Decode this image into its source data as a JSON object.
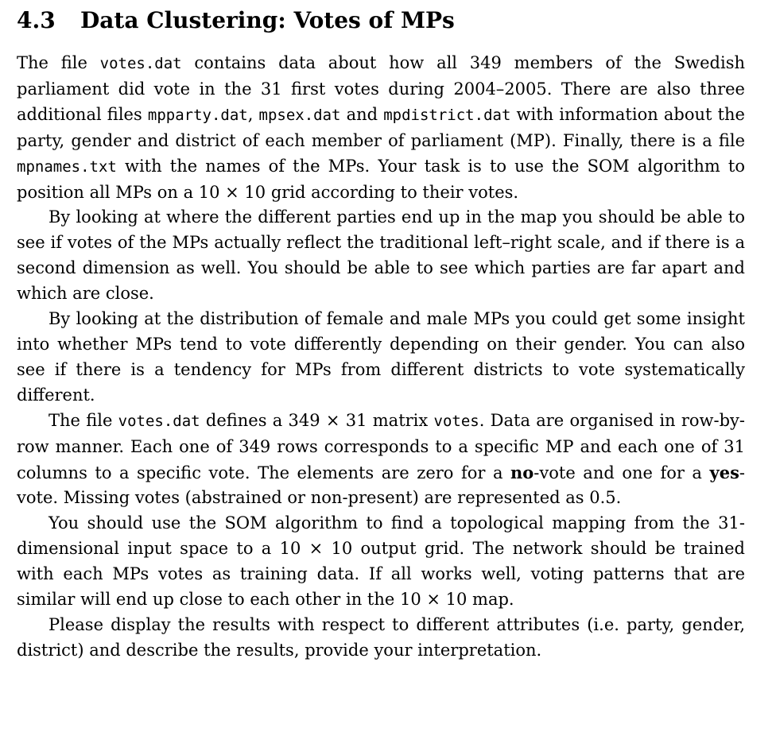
{
  "section": {
    "number": "4.3",
    "title": "Data Clustering: Votes of MPs"
  },
  "paragraphs": [
    [
      {
        "t": "The file "
      },
      {
        "t": "votes.dat",
        "s": "tt"
      },
      {
        "t": " contains data about how all 349 members of the Swedish parliament did vote in the 31 first votes during 2004–2005. There are also three additional files "
      },
      {
        "t": "mpparty.dat",
        "s": "tt"
      },
      {
        "t": ", "
      },
      {
        "t": "mpsex.dat",
        "s": "tt"
      },
      {
        "t": " and "
      },
      {
        "t": "mpdistrict.dat",
        "s": "tt"
      },
      {
        "t": " with information about the party, gender and district of each member of parliament (MP). Finally, there is a file "
      },
      {
        "t": "mpnames.txt",
        "s": "tt"
      },
      {
        "t": " with the names of the MPs. Your task is to use the SOM algorithm to position all MPs on a 10 × 10 grid according to their votes."
      }
    ],
    [
      {
        "t": "By looking at where the different parties end up in the map you should be able to see if votes of the MPs actually reflect the traditional left–right scale, and if there is a second dimension as well. You should be able to see which parties are far apart and which are close."
      }
    ],
    [
      {
        "t": "By looking at the distribution of female and male MPs you could get some insight into whether MPs tend to vote differently depending on their gender. You can also see if there is a tendency for MPs from different districts to vote systematically different."
      }
    ],
    [
      {
        "t": "The file "
      },
      {
        "t": "votes.dat",
        "s": "tt"
      },
      {
        "t": " defines a 349 × 31 matrix "
      },
      {
        "t": "votes",
        "s": "tt"
      },
      {
        "t": ". Data are organised in row-by-row manner. Each one of 349 rows corresponds to a specific MP and each one of 31 columns to a specific vote. The elements are zero for a "
      },
      {
        "t": "no",
        "s": "bf"
      },
      {
        "t": "-vote and one for a "
      },
      {
        "t": "yes",
        "s": "bf"
      },
      {
        "t": "-vote. Missing votes (abstrained or non-present) are represented as 0.5."
      }
    ],
    [
      {
        "t": "You should use the SOM algorithm to find a topological mapping from the 31-dimensional input space to a 10 × 10 output grid. The network should be trained with each MPs votes as training data. If all works well, voting patterns that are similar will end up close to each other in the 10 × 10 map."
      }
    ],
    [
      {
        "t": "Please display the results with respect to different attributes (i.e. party, gender, district) and describe the results, provide your interpretation."
      }
    ]
  ]
}
